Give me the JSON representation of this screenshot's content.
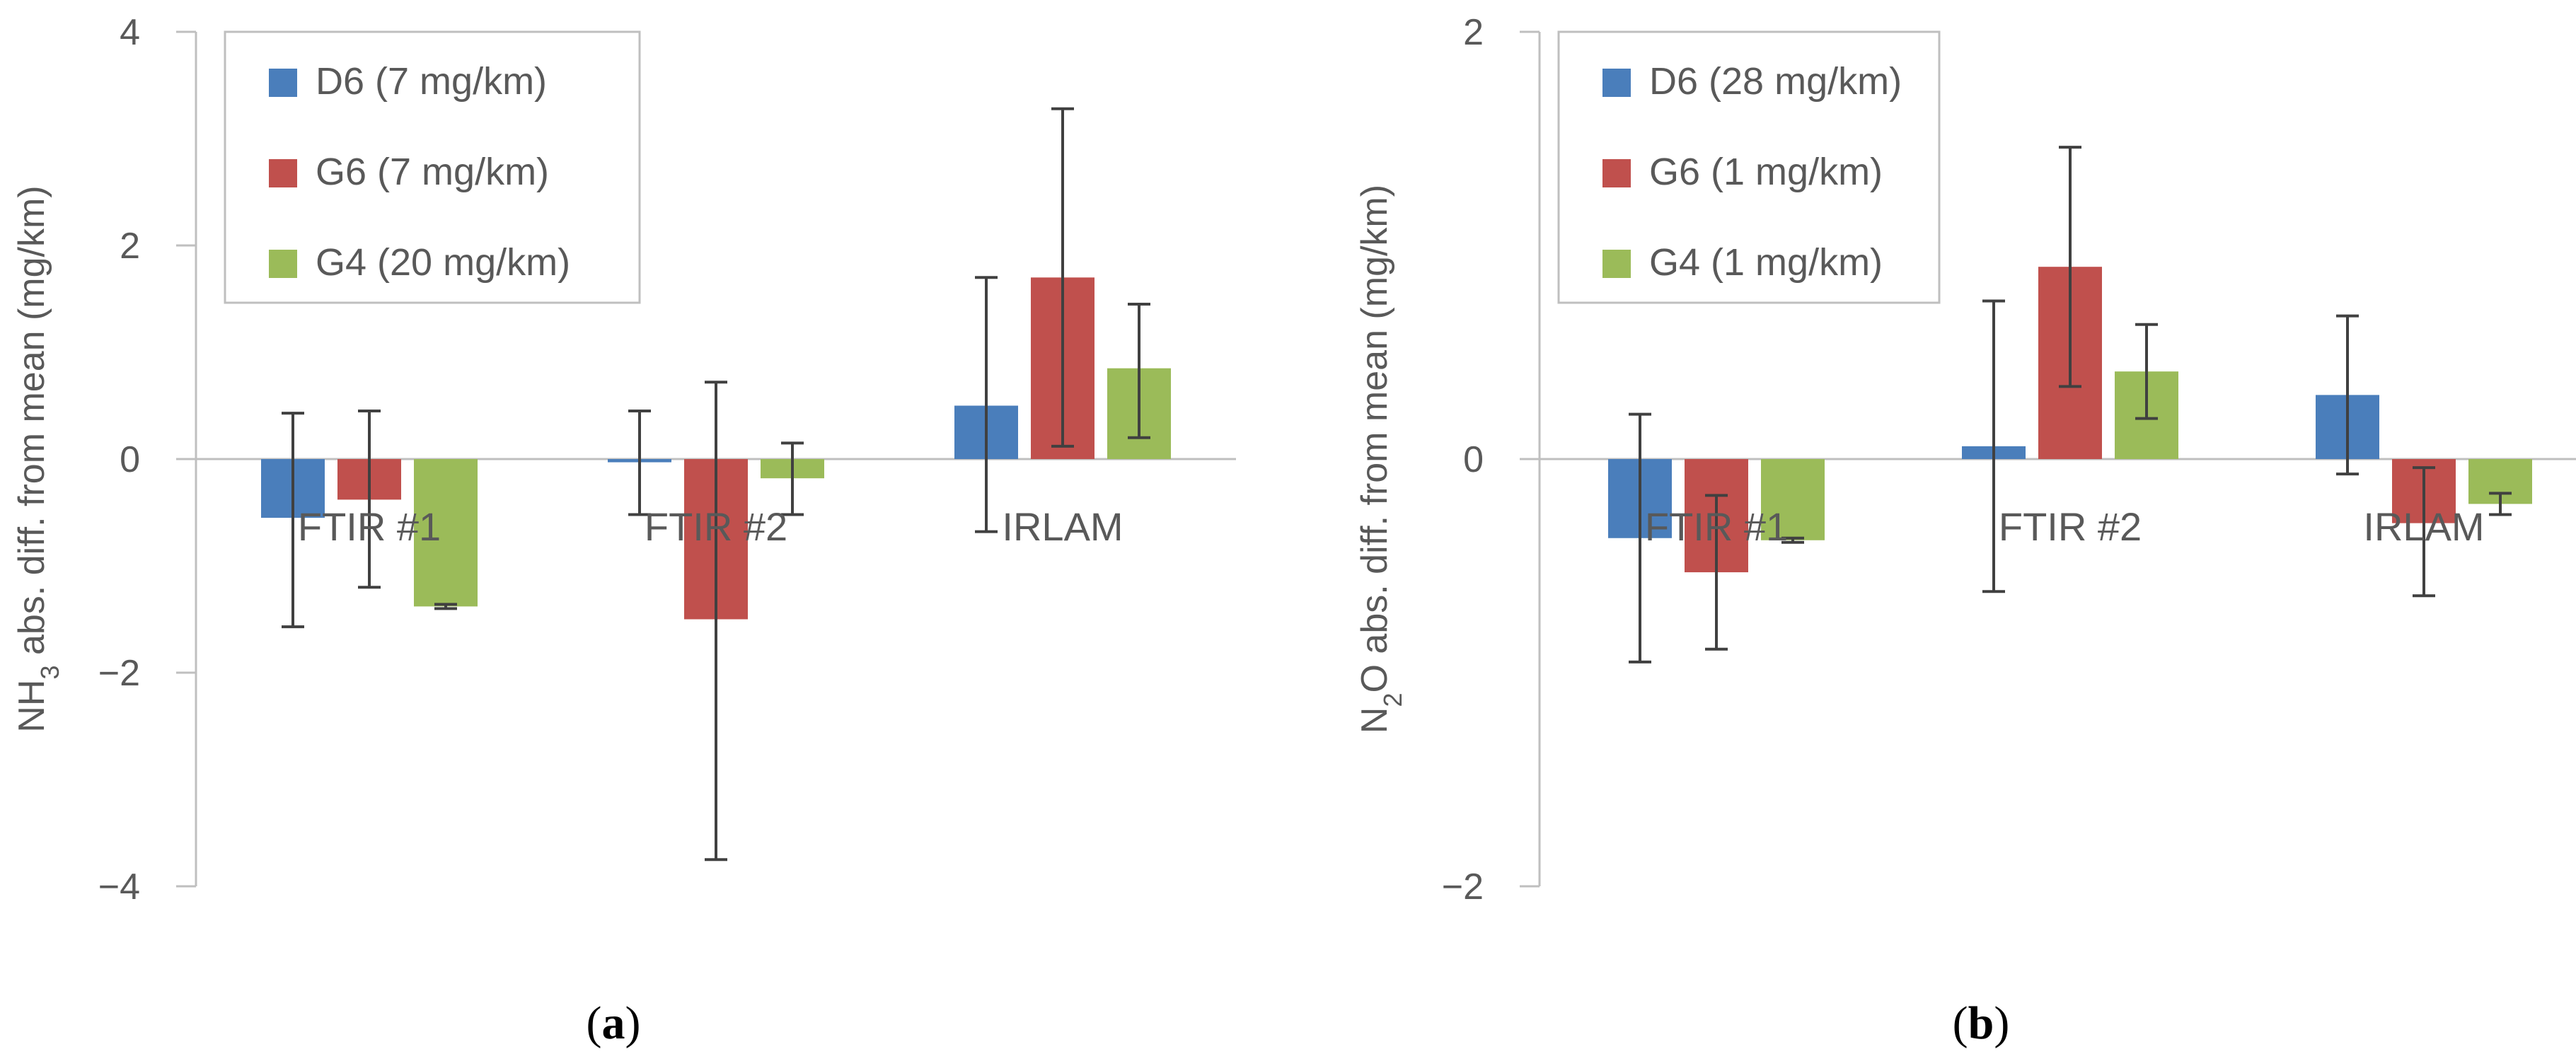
{
  "colors": {
    "D6": "#4a7ebb",
    "G6": "#c0504d",
    "G4": "#9bbb59",
    "axis": "#bfbfbf",
    "text": "#595959",
    "error_bar": "#404040",
    "legend_border": "#bfbfbf"
  },
  "chart_data": [
    {
      "type": "bar",
      "panel_label": "a",
      "title": "",
      "ylabel_main": "NH",
      "ylabel_sub": "3",
      "ylabel_rest": " abs. diff. from mean (mg/km)",
      "xlabel": "",
      "ylim": [
        -4,
        4
      ],
      "yticks": [
        4,
        2,
        0,
        -2,
        -4
      ],
      "ytick_labels": [
        "4",
        "2",
        "0",
        "−2",
        "−4"
      ],
      "categories": [
        "FTIR #1",
        "FTIR #2",
        "IRLAM"
      ],
      "legend_position": "top-left",
      "series": [
        {
          "key": "D6",
          "name": "D6 (7 mg/km)",
          "values": [
            -0.55,
            -0.03,
            0.5
          ],
          "err_low": [
            -1.57,
            -0.52,
            -0.68
          ],
          "err_high": [
            0.43,
            0.45,
            1.7
          ]
        },
        {
          "key": "G6",
          "name": "G6 (7 mg/km)",
          "values": [
            -0.38,
            -1.5,
            1.7
          ],
          "err_low": [
            -1.2,
            -3.75,
            0.12
          ],
          "err_high": [
            0.45,
            0.72,
            3.28
          ]
        },
        {
          "key": "G4",
          "name": "G4 (20 mg/km)",
          "values": [
            -1.38,
            -0.18,
            0.85
          ],
          "err_low": [
            -1.4,
            -0.52,
            0.2
          ],
          "err_high": [
            -1.36,
            0.15,
            1.45
          ]
        }
      ]
    },
    {
      "type": "bar",
      "panel_label": "b",
      "title": "",
      "ylabel_main": "N",
      "ylabel_sub": "2",
      "ylabel_rest": "O abs. diff. from mean (mg/km)",
      "xlabel": "",
      "ylim": [
        -2,
        2
      ],
      "yticks": [
        2,
        0,
        -2
      ],
      "ytick_labels": [
        "2",
        "0",
        "−2"
      ],
      "categories": [
        "FTIR #1",
        "FTIR #2",
        "IRLAM"
      ],
      "legend_position": "top-left",
      "series": [
        {
          "key": "D6",
          "name": "D6 (28 mg/km)",
          "values": [
            -0.37,
            0.06,
            0.3
          ],
          "err_low": [
            -0.95,
            -0.62,
            -0.07
          ],
          "err_high": [
            0.21,
            0.74,
            0.67
          ]
        },
        {
          "key": "G6",
          "name": "G6 (1 mg/km)",
          "values": [
            -0.53,
            0.9,
            -0.3
          ],
          "err_low": [
            -0.89,
            0.34,
            -0.64
          ],
          "err_high": [
            -0.17,
            1.46,
            -0.04
          ]
        },
        {
          "key": "G4",
          "name": "G4 (1 mg/km)",
          "values": [
            -0.38,
            0.41,
            -0.21
          ],
          "err_low": [
            -0.39,
            0.19,
            -0.26
          ],
          "err_high": [
            -0.37,
            0.63,
            -0.16
          ]
        }
      ]
    }
  ]
}
